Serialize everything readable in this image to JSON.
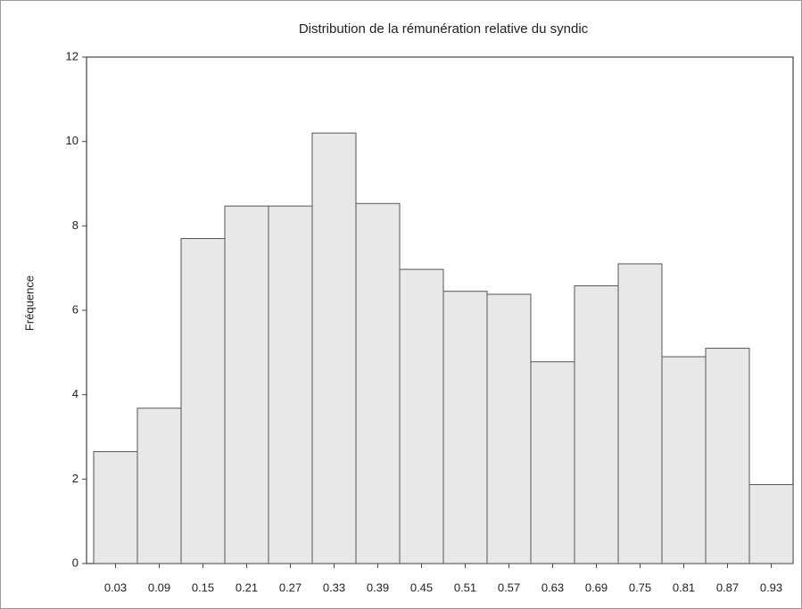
{
  "chart_data": {
    "type": "bar",
    "title": "Distribution de la rémunération relative du syndic",
    "y_label": "Fréquence",
    "categories": [
      "0.03",
      "0.09",
      "0.15",
      "0.21",
      "0.27",
      "0.33",
      "0.39",
      "0.45",
      "0.51",
      "0.57",
      "0.63",
      "0.69",
      "0.75",
      "0.81",
      "0.87",
      "0.93"
    ],
    "values": [
      2.65,
      3.68,
      7.7,
      8.47,
      8.47,
      10.2,
      8.53,
      6.97,
      6.45,
      6.38,
      4.78,
      6.58,
      7.1,
      4.9,
      5.1,
      1.87
    ],
    "color": "#e8e8e8",
    "ylim": [
      0,
      12
    ],
    "yticks": [
      0,
      2,
      4,
      6,
      8,
      10,
      12
    ],
    "grid": false
  }
}
